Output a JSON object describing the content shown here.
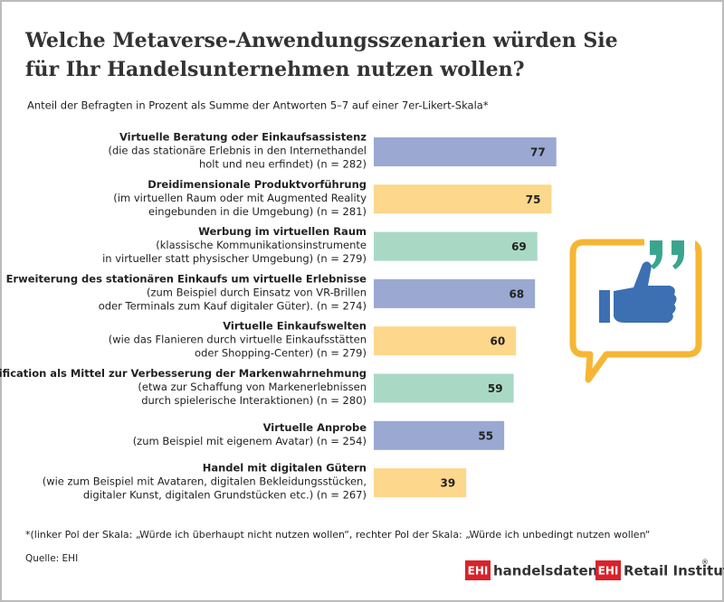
{
  "chart_data": {
    "type": "barh",
    "title": [
      "Welche Metaverse-Anwendungsszenarien würden Sie",
      "für Ihr Handelsunternehmen nutzen wollen?"
    ],
    "subtitle": "Anteil der Befragten in Prozent als Summe der Antworten 5–7 auf einer 7er-Likert-Skala*",
    "categories": [
      "Virtuelle Beratung oder Einkaufsassistenz",
      "Dreidimensionale Produktvorführung",
      "Werbung im virtuellen Raum",
      "Erweiterung des stationären Einkaufs um virtuelle Erlebnisse",
      "Virtuelle Einkaufswelten",
      "Gamification als Mittel zur Verbesserung der Markenwahrnehmung",
      "Virtuelle Anprobe",
      "Handel mit digitalen Gütern"
    ],
    "category_notes": [
      [
        "(die das stationäre Erlebnis in den Internethandel",
        "holt und neu erfindet) (n = 282)"
      ],
      [
        "(im virtuellen Raum oder mit Augmented Reality",
        "eingebunden in die Umgebung) (n = 281)"
      ],
      [
        "(klassische Kommunikationsinstrumente",
        "in virtueller statt physischer Umgebung) (n = 279)"
      ],
      [
        "(zum Beispiel durch Einsatz von VR-Brillen",
        "oder Terminals zum Kauf digitaler Güter). (n = 274)"
      ],
      [
        "(wie das Flanieren durch virtuelle Einkaufsstätten",
        "oder Shopping-Center) (n = 279)"
      ],
      [
        "(etwa zur Schaffung von Markenerlebnissen",
        "durch spielerische Interaktionen) (n = 280)"
      ],
      [
        "(zum Beispiel mit eigenem Avatar) (n = 254)"
      ],
      [
        "(wie zum Beispiel mit Avataren, digitalen Bekleidungsstücken,",
        "digitaler Kunst, digitalen Grundstücken etc.) (n = 267)"
      ]
    ],
    "values": [
      77,
      75,
      69,
      68,
      60,
      59,
      55,
      39
    ],
    "colors": [
      "#9aa8d2",
      "#fcd78c",
      "#a9d9c5",
      "#9aa8d2",
      "#fcd78c",
      "#a9d9c5",
      "#9aa8d2",
      "#fcd78c"
    ],
    "footnote": "*(linker Pol der Skala:  „Würde ich überhaupt nicht nutzen wollen“, rechter Pol der Skala: „Würde ich unbedingt nutzen wollen“",
    "source": "Quelle: EHI",
    "logos": [
      {
        "mark": "EHI",
        "text": "handelsdaten.de"
      },
      {
        "mark": "EHI",
        "text": "Retail Institute",
        "sup": "®"
      }
    ]
  }
}
